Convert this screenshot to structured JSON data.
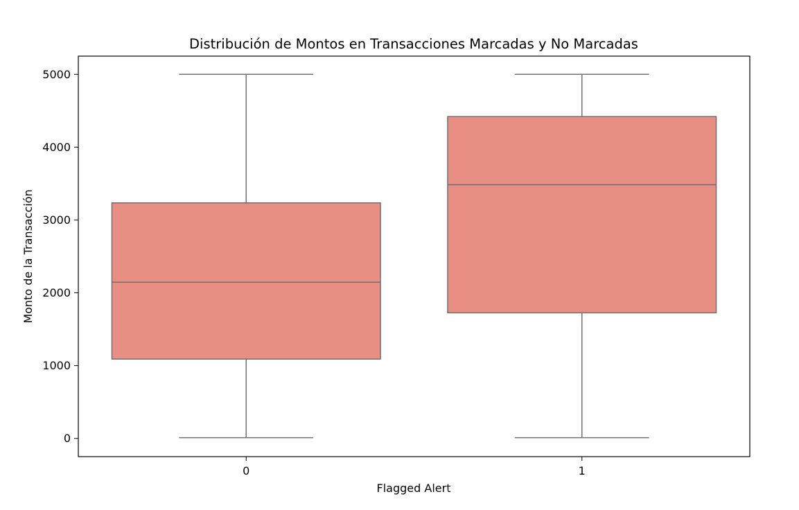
{
  "chart_data": {
    "type": "box",
    "title": "Distribución de Montos en Transacciones Marcadas y No Marcadas",
    "xlabel": "Flagged Alert",
    "ylabel": "Monto de la Transacción",
    "categories": [
      "0",
      "1"
    ],
    "ylim": [
      -250,
      5250
    ],
    "yticks": [
      0,
      1000,
      2000,
      3000,
      4000,
      5000
    ],
    "boxes": [
      {
        "category": "0",
        "whisker_low": 10,
        "q1": 1090,
        "median": 2145,
        "q3": 3235,
        "whisker_high": 5000
      },
      {
        "category": "1",
        "whisker_low": 10,
        "q1": 1725,
        "median": 3485,
        "q3": 4420,
        "whisker_high": 5000
      }
    ],
    "grid": false,
    "colors": {
      "box_fill": "#e88e82",
      "box_line": "#707070",
      "axis": "#000000"
    }
  }
}
